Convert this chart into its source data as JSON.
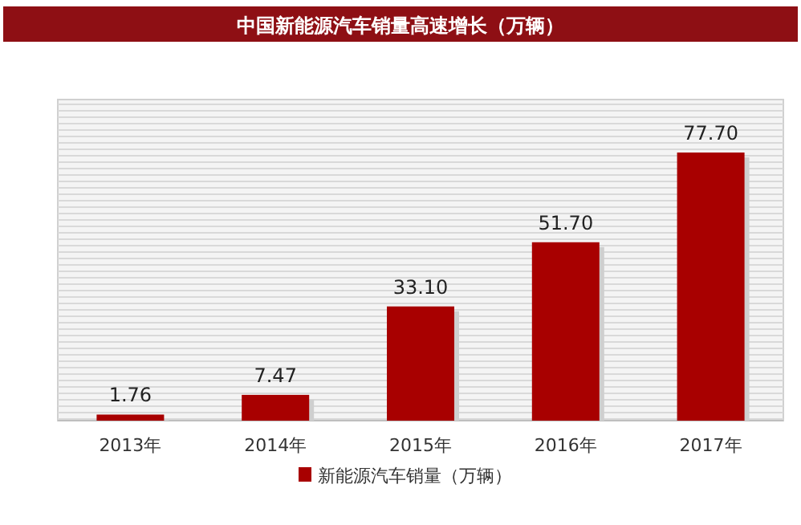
{
  "chart_data": {
    "type": "bar",
    "title": "中国新能源汽车销量高速增长（万辆）",
    "categories": [
      "2013年",
      "2014年",
      "2015年",
      "2016年",
      "2017年"
    ],
    "series": [
      {
        "name": "新能源汽车销量（万辆）",
        "color": "#a80000",
        "values": [
          1.76,
          7.47,
          33.1,
          51.7,
          77.7
        ],
        "value_labels": [
          "1.76",
          "7.47",
          "33.10",
          "51.70",
          "77.70"
        ]
      }
    ],
    "legend": "bottom"
  }
}
